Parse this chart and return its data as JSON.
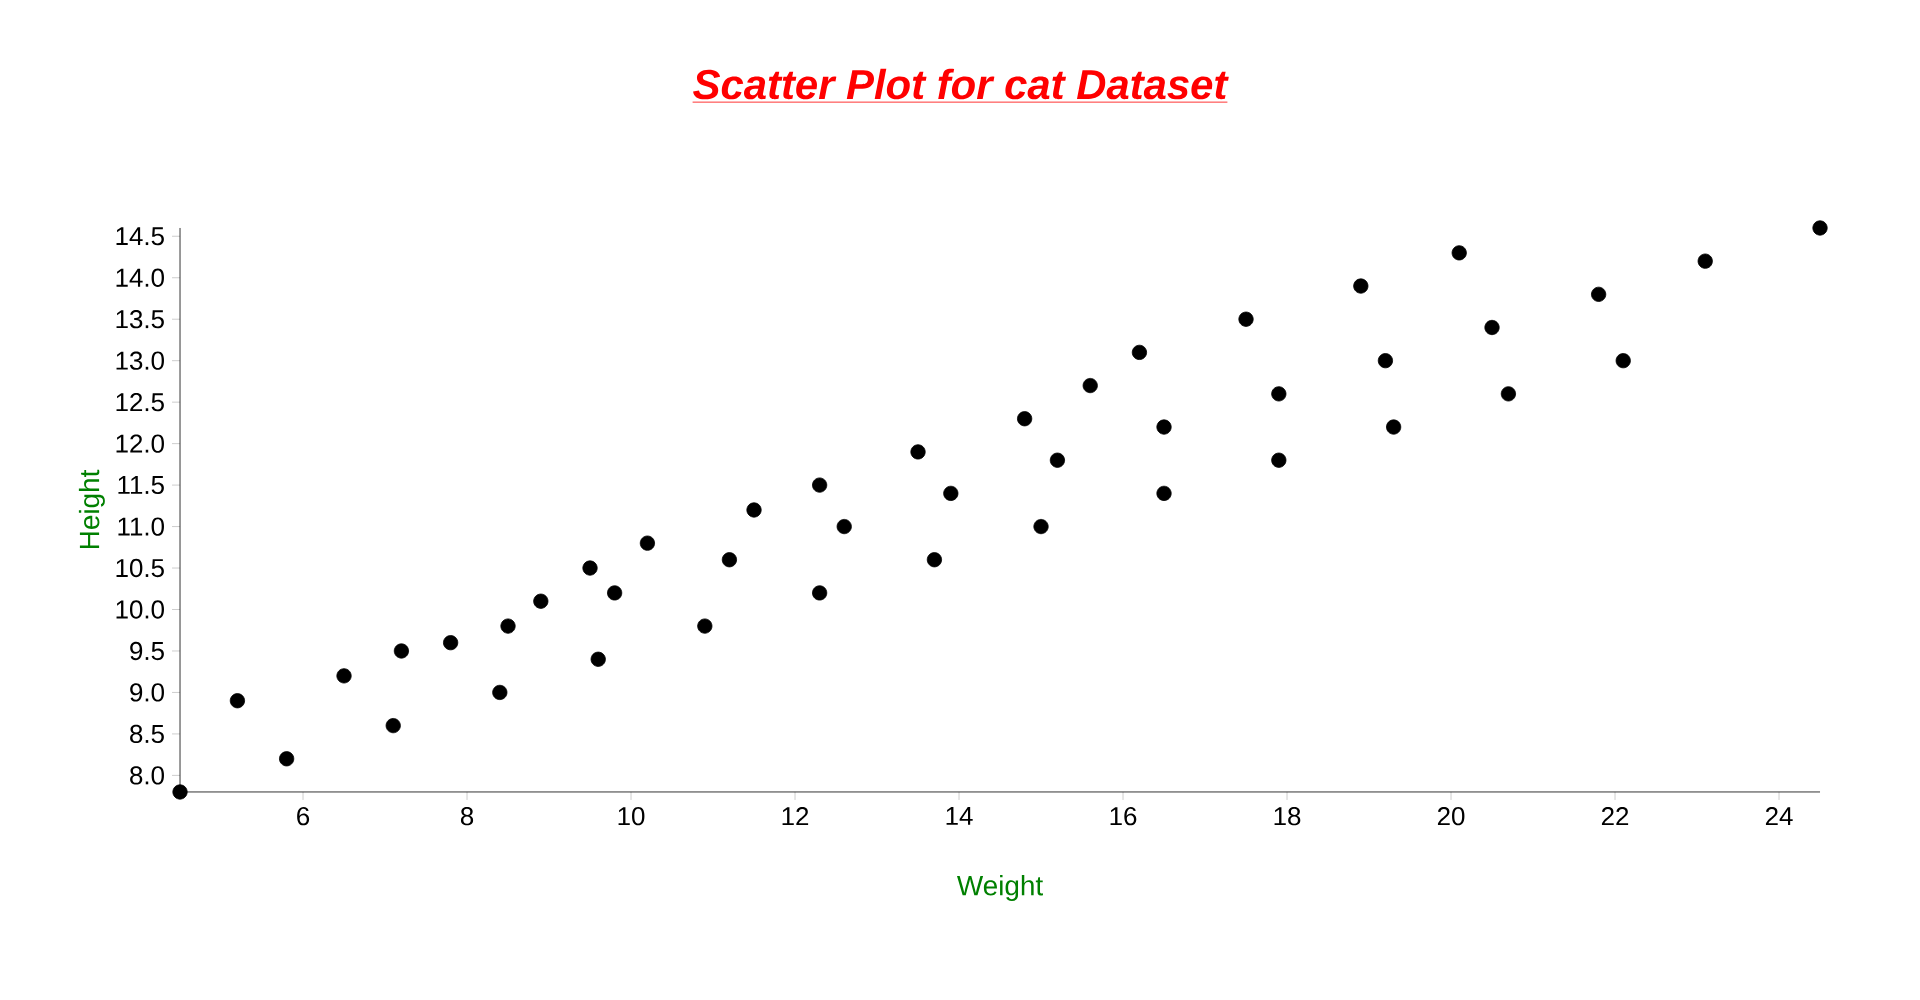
{
  "chart_data": {
    "type": "scatter",
    "title": "Scatter Plot for cat Dataset",
    "xlabel": "Weight",
    "ylabel": "Height",
    "x": [
      4.5,
      5.2,
      5.8,
      6.5,
      7.1,
      7.2,
      7.8,
      8.4,
      8.5,
      8.9,
      9.5,
      9.6,
      9.8,
      10.2,
      10.9,
      11.2,
      11.5,
      12.3,
      12.3,
      12.6,
      13.5,
      13.7,
      13.9,
      14.8,
      15.0,
      15.2,
      15.6,
      16.2,
      16.5,
      16.5,
      17.5,
      17.9,
      17.9,
      18.9,
      19.2,
      19.3,
      20.1,
      20.5,
      20.7,
      21.8,
      22.1,
      23.1,
      24.5
    ],
    "values": [
      7.8,
      8.9,
      8.2,
      9.2,
      8.6,
      9.5,
      9.6,
      9.0,
      9.8,
      10.1,
      10.5,
      9.4,
      10.2,
      10.8,
      9.8,
      10.6,
      11.2,
      11.5,
      10.2,
      11.0,
      11.9,
      10.6,
      11.4,
      12.3,
      11.0,
      11.8,
      12.7,
      13.1,
      12.2,
      11.4,
      13.5,
      12.6,
      11.8,
      13.9,
      13.0,
      12.2,
      14.3,
      13.4,
      12.6,
      13.8,
      13.0,
      14.2,
      14.6
    ],
    "color": "#000000",
    "grid": false,
    "xlim": [
      4.5,
      24.5
    ],
    "ylim": [
      7.8,
      14.6
    ],
    "xticks": [
      6,
      8,
      10,
      12,
      14,
      16,
      18,
      20,
      22,
      24
    ],
    "yticks": [
      {
        "value": 8,
        "label": "8.0"
      },
      {
        "value": 8.5,
        "label": "8.5"
      },
      {
        "value": 9,
        "label": "9.0"
      },
      {
        "value": 9.5,
        "label": "9.5"
      },
      {
        "value": 10,
        "label": "10.0"
      },
      {
        "value": 10.5,
        "label": "10.5"
      },
      {
        "value": 11,
        "label": "11.0"
      },
      {
        "value": 11.5,
        "label": "11.5"
      },
      {
        "value": 12,
        "label": "12.0"
      },
      {
        "value": 12.5,
        "label": "12.5"
      },
      {
        "value": 13,
        "label": "13.0"
      },
      {
        "value": 13.5,
        "label": "13.5"
      },
      {
        "value": 14,
        "label": "14.0"
      },
      {
        "value": 14.5,
        "label": "14.5"
      }
    ]
  }
}
